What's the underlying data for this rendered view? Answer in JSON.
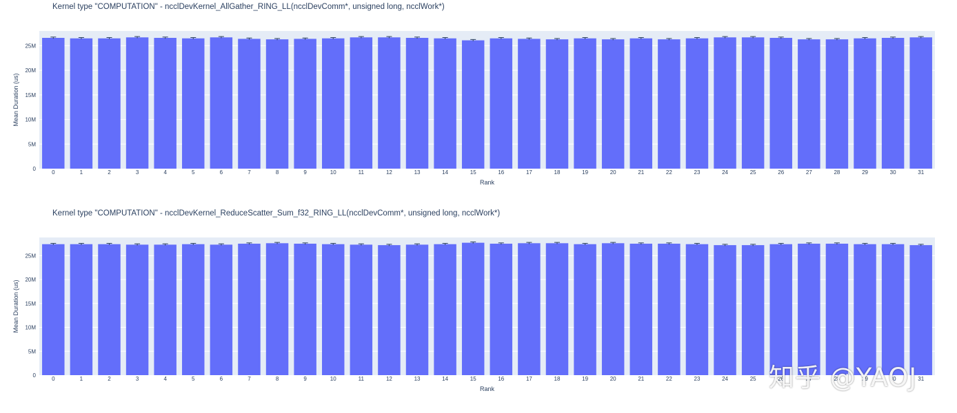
{
  "watermark": "知乎 @YAOJ",
  "colors": {
    "bar": "#636efa",
    "plot_bg": "#e5ecf6",
    "grid": "#ffffff",
    "text": "#2a3f5f",
    "error_bar": "#2a3f5f"
  },
  "chart_data": [
    {
      "type": "bar",
      "title": "Kernel type \"COMPUTATION\" - ncclDevKernel_AllGather_RING_LL(ncclDevComm*, unsigned long, ncclWork*)",
      "xlabel": "Rank",
      "ylabel": "Mean Duration (us)",
      "categories": [
        "0",
        "1",
        "2",
        "3",
        "4",
        "5",
        "6",
        "7",
        "8",
        "9",
        "10",
        "11",
        "12",
        "13",
        "14",
        "15",
        "16",
        "17",
        "18",
        "19",
        "20",
        "21",
        "22",
        "23",
        "24",
        "25",
        "26",
        "27",
        "28",
        "29",
        "30",
        "31"
      ],
      "values": [
        26.6,
        26.5,
        26.5,
        26.7,
        26.6,
        26.5,
        26.7,
        26.4,
        26.3,
        26.4,
        26.5,
        26.7,
        26.7,
        26.6,
        26.5,
        26.1,
        26.5,
        26.4,
        26.3,
        26.5,
        26.3,
        26.5,
        26.3,
        26.5,
        26.7,
        26.7,
        26.6,
        26.3,
        26.3,
        26.5,
        26.6,
        26.7
      ],
      "value_unit_multiplier": 1000000,
      "ylim": [
        0,
        28
      ],
      "yticks": [
        "0",
        "5M",
        "10M",
        "15M",
        "20M",
        "25M"
      ],
      "error_bars": true,
      "grid": true
    },
    {
      "type": "bar",
      "title": "Kernel type \"COMPUTATION\" - ncclDevKernel_ReduceScatter_Sum_f32_RING_LL(ncclDevComm*, unsigned long, ncclWork*)",
      "xlabel": "Rank",
      "ylabel": "Mean Duration (us)",
      "categories": [
        "0",
        "1",
        "2",
        "3",
        "4",
        "5",
        "6",
        "7",
        "8",
        "9",
        "10",
        "11",
        "12",
        "13",
        "14",
        "15",
        "16",
        "17",
        "18",
        "19",
        "20",
        "21",
        "22",
        "23",
        "24",
        "25",
        "26",
        "27",
        "28",
        "29",
        "30",
        "31"
      ],
      "values": [
        27.4,
        27.4,
        27.4,
        27.3,
        27.3,
        27.4,
        27.3,
        27.5,
        27.6,
        27.5,
        27.4,
        27.3,
        27.2,
        27.3,
        27.4,
        27.7,
        27.5,
        27.6,
        27.6,
        27.4,
        27.6,
        27.5,
        27.5,
        27.4,
        27.2,
        27.2,
        27.4,
        27.5,
        27.5,
        27.4,
        27.4,
        27.2
      ],
      "value_unit_multiplier": 1000000,
      "ylim": [
        0,
        28.8
      ],
      "yticks": [
        "0",
        "5M",
        "10M",
        "15M",
        "20M",
        "25M"
      ],
      "error_bars": true,
      "grid": true
    }
  ]
}
